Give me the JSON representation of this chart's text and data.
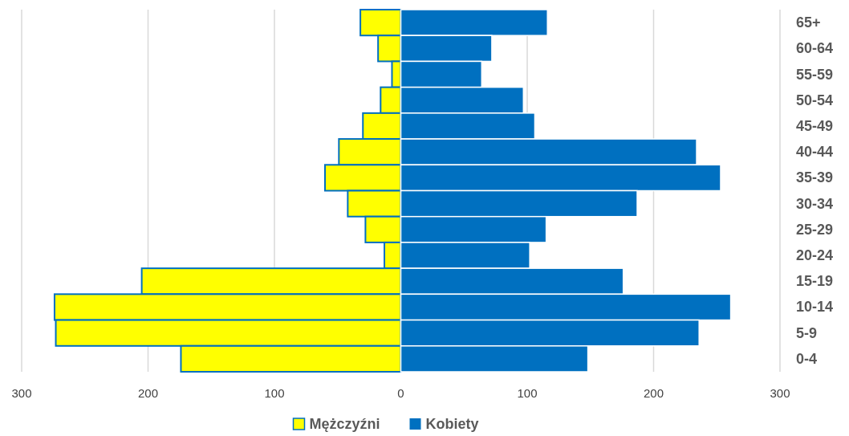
{
  "chart_data": {
    "type": "bar",
    "orientation": "horizontal",
    "categories": [
      "65+",
      "60-64",
      "55-59",
      "50-54",
      "45-49",
      "40-44",
      "35-39",
      "30-34",
      "25-29",
      "20-24",
      "15-19",
      "10-14",
      "5-9",
      "0-4"
    ],
    "series": [
      {
        "name": "Mężczyźni",
        "color": "#ffff00",
        "values": [
          -32,
          -18,
          -7,
          -16,
          -30,
          -49,
          -60,
          -42,
          -28,
          -13,
          -205,
          -274,
          -273,
          -174
        ]
      },
      {
        "name": "Kobiety",
        "color": "#0070c0",
        "values": [
          116,
          72,
          64,
          97,
          106,
          234,
          253,
          187,
          115,
          102,
          176,
          261,
          236,
          148
        ]
      }
    ],
    "xlim": [
      -300,
      300
    ],
    "xticks": [
      {
        "value": -300,
        "label": "300"
      },
      {
        "value": -200,
        "label": "200"
      },
      {
        "value": -100,
        "label": "100"
      },
      0,
      100,
      200,
      300
    ],
    "grid": "x",
    "legend": "bottom",
    "stacked": true
  }
}
